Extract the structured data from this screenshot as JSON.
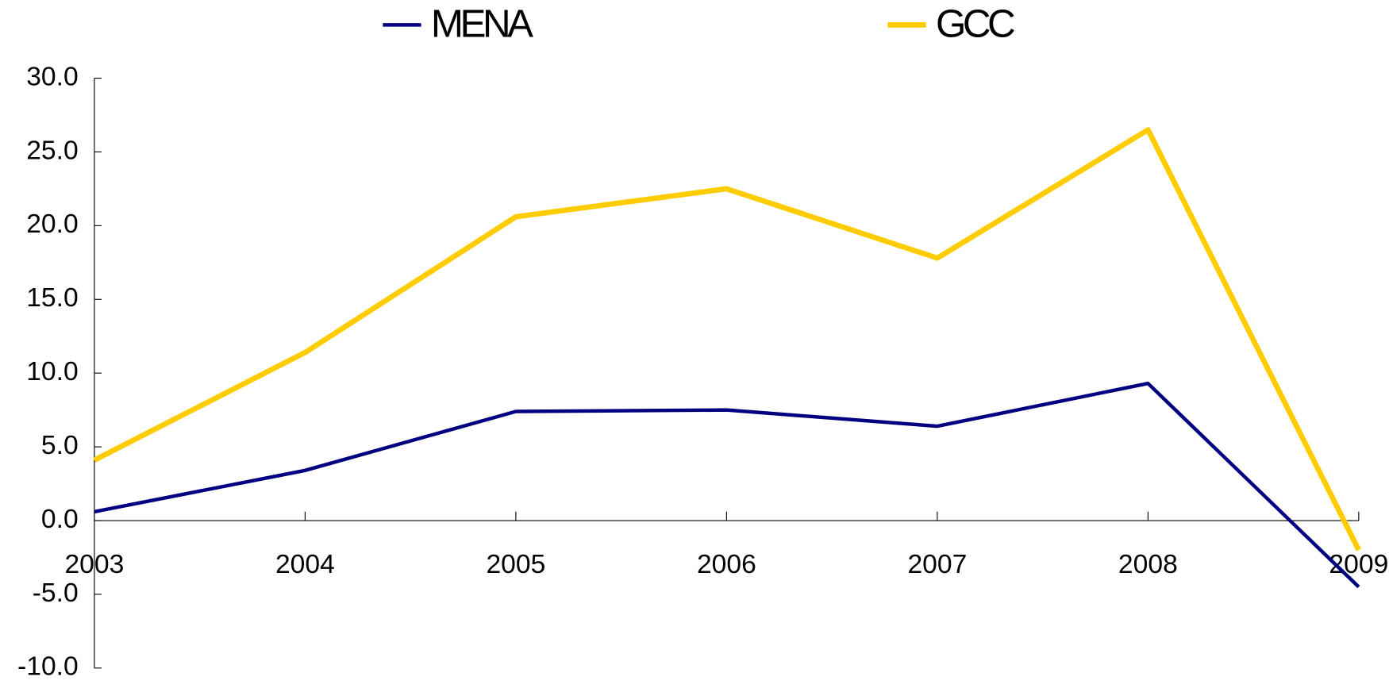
{
  "chart_data": {
    "type": "line",
    "categories": [
      "2003",
      "2004",
      "2005",
      "2006",
      "2007",
      "2008",
      "2009"
    ],
    "series": [
      {
        "name": "MENA",
        "color": "#000080",
        "values": [
          0.6,
          3.4,
          7.4,
          7.5,
          6.4,
          9.3,
          -4.5
        ]
      },
      {
        "name": "GCC",
        "color": "#ffcc00",
        "values": [
          4.1,
          11.4,
          20.6,
          22.5,
          17.8,
          26.5,
          -2.0
        ]
      }
    ],
    "ylim": [
      -10,
      30
    ],
    "yticks": [
      {
        "value": -10,
        "label": "-10.0"
      },
      {
        "value": -5,
        "label": "-5.0"
      },
      {
        "value": 0,
        "label": "0.0"
      },
      {
        "value": 5,
        "label": "5.0"
      },
      {
        "value": 10,
        "label": "10.0"
      },
      {
        "value": 15,
        "label": "15.0"
      },
      {
        "value": 20,
        "label": "20.0"
      },
      {
        "value": 25,
        "label": "25.0"
      },
      {
        "value": 30,
        "label": "30.0"
      }
    ],
    "legend": "top"
  }
}
